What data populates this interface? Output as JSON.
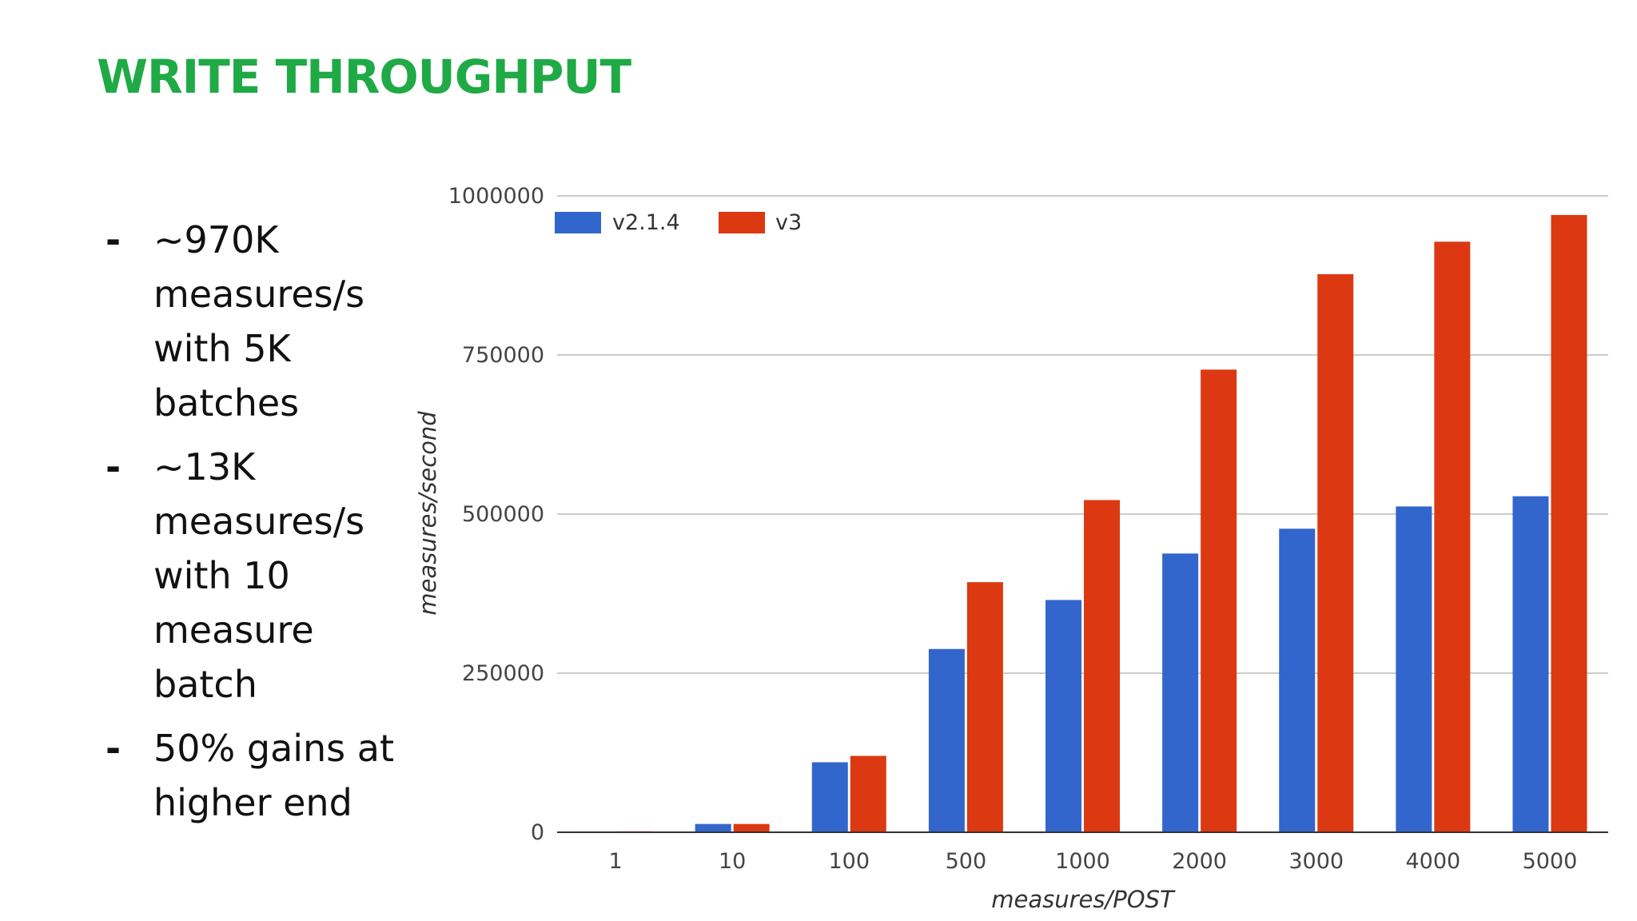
{
  "slide": {
    "title": "WRITE THROUGHPUT",
    "bullets": [
      "~970K measures/s with 5K batches",
      "~13K measures/s with 10 measure batch",
      "50% gains at higher end"
    ],
    "bullet_marker": "-"
  },
  "colors": {
    "title": "#1faa46",
    "series1": "#3366cc",
    "series2": "#dc3912",
    "grid": "#cccccc"
  },
  "chart_data": {
    "type": "bar",
    "title": "",
    "xlabel": "measures/POST",
    "ylabel": "measures/second",
    "categories": [
      "1",
      "10",
      "100",
      "500",
      "1000",
      "2000",
      "3000",
      "4000",
      "5000"
    ],
    "series": [
      {
        "name": "v2.1.4",
        "values": [
          1300,
          13000,
          110000,
          288000,
          365000,
          438000,
          477000,
          512000,
          528000
        ]
      },
      {
        "name": "v3",
        "values": [
          1500,
          13000,
          120000,
          393000,
          522000,
          727000,
          877000,
          928000,
          970000
        ]
      }
    ],
    "ylim": [
      0,
      1000000
    ],
    "yticks": [
      "0",
      "250000",
      "500000",
      "750000",
      "1000000"
    ],
    "ytick_values": [
      0,
      250000,
      500000,
      750000,
      1000000
    ],
    "grid": true,
    "legend_position": "top-left"
  }
}
